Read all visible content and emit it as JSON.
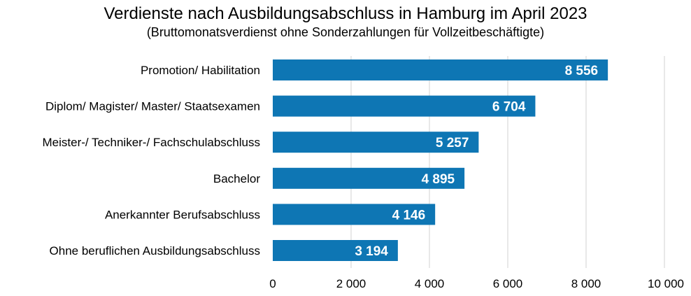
{
  "chart_data": {
    "type": "bar",
    "orientation": "horizontal",
    "title": "Verdienste nach Ausbildungsabschluss in Hamburg im April 2023",
    "subtitle": "(Bruttomonatsverdienst ohne Sonderzahlungen für Vollzeitbeschäftigte)",
    "categories": [
      "Promotion/ Habilitation",
      "Diplom/ Magister/ Master/ Staatsexamen",
      "Meister-/ Techniker-/ Fachschulabschluss",
      "Bachelor",
      "Anerkannter Berufsabschluss",
      "Ohne beruflichen Ausbildungsabschluss"
    ],
    "values": [
      8556,
      6704,
      5257,
      4895,
      4146,
      3194
    ],
    "value_labels": [
      "8 556",
      "6 704",
      "5 257",
      "4 895",
      "4 146",
      "3 194"
    ],
    "xlim": [
      0,
      10000
    ],
    "ticks": [
      0,
      2000,
      4000,
      6000,
      8000,
      10000
    ],
    "tick_labels": [
      "0",
      "2 000",
      "4 000",
      "6 000",
      "8 000",
      "10 000"
    ],
    "xlabel": "",
    "ylabel": "",
    "grid": "vertical",
    "bar_color": "#0e76b4",
    "grid_color": "#d9d9d9"
  }
}
